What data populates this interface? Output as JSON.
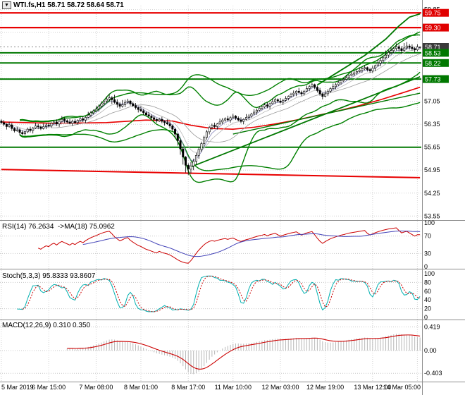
{
  "title_bar": {
    "icon_glyph": "▼",
    "text": "WTI.fs,H1 58.71 58.72 58.64 58.71"
  },
  "chart_data": {
    "type": "candlestick",
    "symbol": "WTI.fs",
    "timeframe": "H1",
    "ohlc_display": {
      "open": "58.71",
      "high": "58.72",
      "low": "58.64",
      "close": "58.71"
    },
    "current_price": 58.71,
    "x_axis": {
      "labels": [
        {
          "text": "5 Mar 2019",
          "i": 0
        },
        {
          "text": "6 Mar 15:00",
          "i": 18
        },
        {
          "text": "7 Mar 08:00",
          "i": 36
        },
        {
          "text": "8 Mar 01:00",
          "i": 53
        },
        {
          "text": "8 Mar 17:00",
          "i": 71
        },
        {
          "text": "11 Mar 10:00",
          "i": 88
        },
        {
          "text": "12 Mar 03:00",
          "i": 106
        },
        {
          "text": "12 Mar 19:00",
          "i": 123
        },
        {
          "text": "13 Mar 12:00",
          "i": 141
        },
        {
          "text": "14 Mar 05:00",
          "i": 158
        }
      ]
    },
    "y_ticks": [
      {
        "t": "59.85",
        "v": 59.85
      },
      {
        "t": "57.05",
        "v": 57.05
      },
      {
        "t": "56.35",
        "v": 56.35
      },
      {
        "t": "55.65",
        "v": 55.65
      },
      {
        "t": "54.95",
        "v": 54.95
      },
      {
        "t": "54.25",
        "v": 54.25
      },
      {
        "t": "53.55",
        "v": 53.55
      }
    ],
    "y_gridlines": [
      59.85,
      59.15,
      58.45,
      57.75,
      57.05,
      56.35,
      55.65,
      54.95,
      54.25,
      53.55
    ],
    "price_tags": [
      {
        "t": "59.75",
        "v": 59.75,
        "bg": "#e00000"
      },
      {
        "t": "59.30",
        "v": 59.3,
        "bg": "#e00000"
      },
      {
        "t": "58.71",
        "v": 58.71,
        "bg": "#3a3a3a"
      },
      {
        "t": "58.53",
        "v": 58.53,
        "bg": "#007800"
      },
      {
        "t": "58.22",
        "v": 58.22,
        "bg": "#007800"
      },
      {
        "t": "57.73",
        "v": 57.73,
        "bg": "#007800"
      }
    ],
    "levels": [
      {
        "v": 59.75,
        "c": "#e80000",
        "w": 2.2
      },
      {
        "v": 59.3,
        "c": "#e80000",
        "w": 2.2
      },
      {
        "v": 58.53,
        "c": "#007800",
        "w": 2
      },
      {
        "v": 58.22,
        "c": "#007800",
        "w": 2
      },
      {
        "v": 57.73,
        "c": "#007800",
        "w": 2
      },
      {
        "v": 55.65,
        "c": "#007800",
        "w": 2
      }
    ],
    "lines": [
      {
        "name": "red-lower-ma",
        "c": "#e80000",
        "w": 2,
        "pts": [
          [
            0,
            54.97
          ],
          [
            159,
            54.72
          ]
        ]
      },
      {
        "name": "red-mid-ma",
        "c": "#e80000",
        "w": 1.6,
        "pts": [
          [
            0,
            56.42
          ],
          [
            20,
            56.38
          ],
          [
            40,
            56.4
          ],
          [
            55,
            56.48
          ],
          [
            65,
            56.45
          ],
          [
            72,
            56.32
          ],
          [
            80,
            56.22
          ],
          [
            88,
            56.2
          ],
          [
            96,
            56.26
          ],
          [
            104,
            56.36
          ],
          [
            112,
            56.48
          ],
          [
            120,
            56.62
          ],
          [
            128,
            56.76
          ],
          [
            136,
            56.92
          ],
          [
            144,
            57.1
          ],
          [
            152,
            57.3
          ],
          [
            159,
            57.48
          ]
        ]
      },
      {
        "name": "green-trendline-steep",
        "c": "#007800",
        "w": 1.8,
        "pts": [
          [
            72,
            55.05
          ],
          [
            159,
            57.8
          ]
        ]
      },
      {
        "name": "green-trendline-shallow",
        "c": "#007800",
        "w": 1.4,
        "pts": [
          [
            88,
            56.05
          ],
          [
            159,
            57.3
          ]
        ]
      },
      {
        "name": "green-upper-arc",
        "c": "#007800",
        "w": 1.8,
        "pts": [
          [
            120,
            57.55
          ],
          [
            130,
            58.05
          ],
          [
            138,
            58.45
          ],
          [
            146,
            58.95
          ],
          [
            151,
            59.35
          ],
          [
            155,
            59.62
          ],
          [
            159,
            59.72
          ]
        ]
      }
    ],
    "bollinger": [
      {
        "period": 20,
        "dev": 2.4,
        "color": "#008000",
        "w": 1.4
      },
      {
        "period": 40,
        "dev": 2.2,
        "color": "#008000",
        "w": 1.4
      }
    ],
    "series": {
      "first_open": 56.45,
      "closes": [
        56.4,
        56.35,
        56.28,
        56.33,
        56.22,
        56.15,
        56.18,
        56.1,
        56.06,
        56.12,
        56.2,
        56.16,
        56.24,
        56.3,
        56.27,
        56.22,
        56.28,
        56.33,
        56.3,
        56.38,
        56.42,
        56.36,
        56.44,
        56.5,
        56.46,
        56.42,
        56.38,
        56.44,
        56.4,
        56.47,
        56.52,
        56.48,
        56.56,
        56.63,
        56.7,
        56.76,
        56.82,
        56.9,
        56.98,
        57.06,
        57.12,
        57.16,
        57.1,
        57.02,
        56.96,
        56.9,
        56.95,
        57.02,
        57.06,
        56.98,
        56.92,
        56.86,
        56.8,
        56.76,
        56.7,
        56.64,
        56.6,
        56.55,
        56.5,
        56.46,
        56.5,
        56.44,
        56.4,
        56.36,
        56.3,
        56.2,
        56.05,
        55.85,
        55.6,
        55.35,
        55.1,
        54.98,
        55.08,
        55.22,
        55.4,
        55.58,
        55.76,
        55.95,
        56.12,
        56.25,
        56.32,
        56.28,
        56.36,
        56.42,
        56.48,
        56.52,
        56.48,
        56.55,
        56.6,
        56.54,
        56.48,
        56.44,
        56.5,
        56.56,
        56.6,
        56.66,
        56.72,
        56.78,
        56.84,
        56.88,
        56.94,
        56.9,
        56.98,
        57.04,
        57.1,
        57.06,
        57.02,
        57.08,
        57.14,
        57.2,
        57.26,
        57.3,
        57.36,
        57.32,
        57.28,
        57.36,
        57.44,
        57.5,
        57.56,
        57.48,
        57.38,
        57.28,
        57.2,
        57.28,
        57.36,
        57.44,
        57.5,
        57.56,
        57.62,
        57.68,
        57.72,
        57.78,
        57.84,
        57.88,
        57.92,
        57.96,
        58.0,
        58.04,
        58.08,
        58.02,
        57.98,
        58.06,
        58.14,
        58.22,
        58.3,
        58.38,
        58.46,
        58.54,
        58.6,
        58.66,
        58.72,
        58.66,
        58.6,
        58.68,
        58.74,
        58.7,
        58.66,
        58.62,
        58.71,
        58.71
      ],
      "highs": [
        56.5,
        56.48,
        56.38,
        56.43,
        56.39,
        56.26,
        56.27,
        56.23,
        56.17,
        56.15,
        56.25,
        56.28,
        56.27,
        56.4,
        56.36,
        56.31,
        56.37,
        56.38,
        56.4,
        56.41,
        56.47,
        56.5,
        56.47,
        56.6,
        56.56,
        56.5,
        56.51,
        56.49,
        56.51,
        56.5,
        56.57,
        56.6,
        56.59,
        56.73,
        56.76,
        56.8,
        56.91,
        56.95,
        57.05,
        57.09,
        57.2,
        57.28,
        57.21,
        57.25,
        57.11,
        57.02,
        57.09,
        57.1,
        57.13,
        57.09,
        57.03,
        57.0,
        56.89,
        56.9,
        56.82,
        56.74,
        56.73,
        56.65,
        56.62,
        56.53,
        56.55,
        56.58,
        56.47,
        56.5,
        56.42,
        56.34,
        56.24,
        56.08,
        55.9,
        55.66,
        55.38,
        55.16,
        55.2,
        55.3,
        55.48,
        55.66,
        55.82,
        56.0,
        56.18,
        56.3,
        56.37,
        56.4,
        56.39,
        56.52,
        56.54,
        56.56,
        56.61,
        56.6,
        56.67,
        56.63,
        56.59,
        56.56,
        56.53,
        56.66,
        56.66,
        56.7,
        56.81,
        56.83,
        56.91,
        56.91,
        56.99,
        57.02,
        57.01,
        57.14,
        57.16,
        57.14,
        57.15,
        57.13,
        57.21,
        57.23,
        57.31,
        57.38,
        57.39,
        57.46,
        57.38,
        57.4,
        57.53,
        57.55,
        57.63,
        57.59,
        57.53,
        57.46,
        57.31,
        57.38,
        57.42,
        57.48,
        57.59,
        57.61,
        57.69,
        57.71,
        57.77,
        57.86,
        57.87,
        57.98,
        57.98,
        58.0,
        58.09,
        58.09,
        58.15,
        58.11,
        58.07,
        58.14,
        58.17,
        58.32,
        58.39,
        58.44,
        58.6,
        58.62,
        58.71,
        58.71,
        58.82,
        58.78,
        58.73,
        58.83,
        58.86,
        58.8,
        58.79,
        58.71,
        58.79,
        58.72
      ],
      "lows": [
        56.36,
        56.29,
        56.19,
        56.25,
        56.15,
        56.1,
        56.12,
        56.02,
        56.02,
        56.0,
        56.08,
        56.1,
        56.07,
        56.21,
        56.2,
        56.17,
        56.19,
        56.2,
        56.26,
        56.24,
        56.34,
        56.3,
        56.27,
        56.41,
        56.39,
        56.37,
        56.35,
        56.3,
        56.36,
        56.34,
        56.43,
        56.42,
        56.39,
        56.53,
        56.56,
        56.65,
        56.73,
        56.74,
        56.86,
        56.92,
        57.0,
        57.03,
        56.97,
        56.98,
        56.86,
        56.83,
        56.86,
        56.87,
        56.98,
        56.92,
        56.88,
        56.8,
        56.71,
        56.73,
        56.63,
        56.59,
        56.57,
        56.47,
        56.46,
        56.4,
        56.42,
        56.38,
        56.31,
        56.33,
        56.23,
        56.15,
        55.92,
        55.7,
        55.42,
        55.12,
        54.88,
        54.8,
        54.85,
        54.95,
        55.12,
        55.3,
        55.5,
        55.68,
        55.88,
        56.04,
        56.18,
        56.22,
        56.19,
        56.33,
        56.35,
        56.43,
        56.45,
        56.4,
        56.51,
        56.48,
        56.44,
        56.38,
        56.35,
        56.47,
        56.49,
        56.55,
        56.63,
        56.64,
        56.74,
        56.78,
        56.84,
        56.84,
        56.81,
        56.95,
        56.97,
        57.01,
        56.99,
        56.94,
        57.04,
        57.08,
        57.16,
        57.2,
        57.21,
        57.29,
        57.21,
        57.23,
        57.33,
        57.36,
        57.46,
        57.42,
        57.32,
        57.22,
        57.11,
        57.17,
        57.21,
        57.31,
        57.41,
        57.42,
        57.52,
        57.56,
        57.64,
        57.69,
        57.69,
        57.81,
        57.81,
        57.87,
        57.93,
        57.92,
        58.0,
        57.96,
        57.92,
        57.92,
        57.97,
        58.11,
        58.12,
        58.23,
        58.33,
        58.38,
        58.48,
        58.52,
        58.6,
        58.57,
        58.5,
        58.55,
        58.62,
        58.63,
        58.6,
        58.54,
        58.58,
        58.64
      ]
    },
    "indicators": {
      "rsi": {
        "label": "RSI(14) 76.2634  ->MA(18) 75.0962",
        "period": 14,
        "ma_period": 18,
        "ticks": [
          100,
          70,
          30,
          0
        ],
        "guide_levels": [
          70,
          30
        ],
        "line_color": "#cc0000",
        "ma_color": "#4343b8"
      },
      "stoch": {
        "label": "Stoch(5,3,3) 95.8333 93.8607",
        "k_period": 5,
        "k_smooth": 3,
        "d_period": 3,
        "ticks": [
          100,
          80,
          60,
          40,
          20,
          0
        ],
        "guide_levels": [
          80,
          20
        ],
        "k_color": "#00b0b0",
        "d_color": "#cc0000"
      },
      "macd": {
        "label": "MACD(12,26,9) 0.310 0.350",
        "fast": 12,
        "slow": 26,
        "signal": 9,
        "ticks": [
          {
            "t": "0.419",
            "v": 0.419
          },
          {
            "t": "0.00",
            "v": 0
          },
          {
            "t": "-0.403",
            "v": -0.403
          }
        ],
        "hist_color": "#b8b8b8",
        "signal_color": "#cc0000"
      }
    },
    "colors": {
      "background": "#ffffff",
      "grid": "#d4d4d4",
      "separator": "#8c8c8c",
      "candle_up_fill": "#ffffff",
      "candle_down_fill": "#000000",
      "candle_border": "#000000",
      "band_green": "#008000",
      "level_red": "#e80000"
    }
  }
}
